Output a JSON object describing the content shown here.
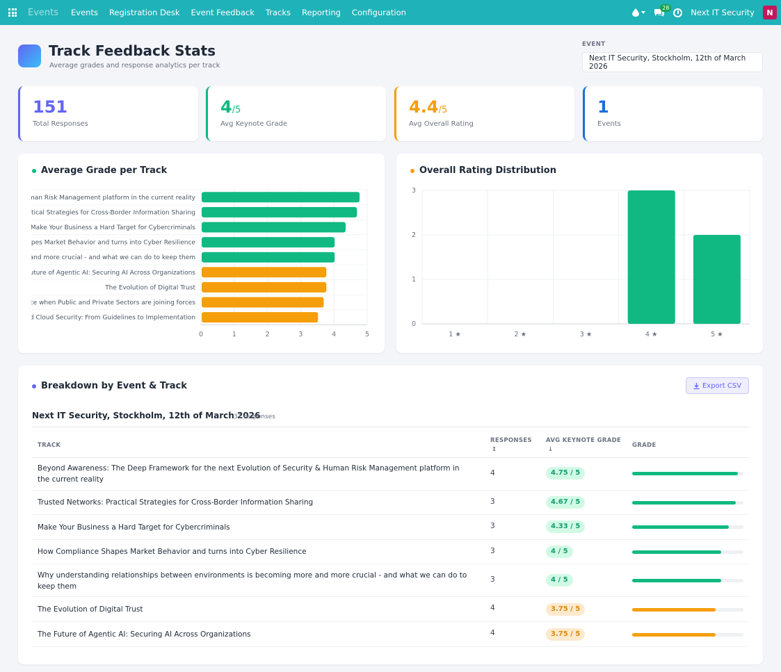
{
  "nav": {
    "brand": "Events",
    "links": [
      "Events",
      "Registration Desk",
      "Event Feedback",
      "Tracks",
      "Reporting",
      "Configuration"
    ],
    "chat_count": "28",
    "company": "Next IT Security",
    "avatar_letter": "N"
  },
  "header": {
    "title": "Track Feedback Stats",
    "subtitle": "Average grades and response analytics per track",
    "event_label": "EVENT",
    "event_value": "Next IT Security, Stockholm, 12th of March 2026"
  },
  "kpis": [
    {
      "value": "151",
      "unit": "",
      "label": "Total Responses",
      "color": "#6366f1"
    },
    {
      "value": "4",
      "unit": "/5",
      "label": "Avg Keynote Grade",
      "color": "#10b981"
    },
    {
      "value": "4.4",
      "unit": "/5",
      "label": "Avg Overall Rating",
      "color": "#f59e0b"
    },
    {
      "value": "1",
      "unit": "",
      "label": "Events",
      "color": "#1d6fd8"
    }
  ],
  "chart_data": [
    {
      "type": "bar",
      "orientation": "horizontal",
      "title": "Average Grade per Track",
      "categories": [
        "uman Risk Management platform in the current reality",
        "tical Strategies for Cross-Border Information Sharing",
        "Make Your Business a Hard Target for Cybercriminals",
        "apes Market Behavior and turns into Cyber Resilience",
        "and more crucial - and what we can do to keep them",
        "uture of Agentic AI: Securing AI Across Organizations",
        "The Evolution of Digital Trust",
        "ce when Public and Private Sectors are joining forces",
        "d Cloud Security: From Guidelines to Implementation"
      ],
      "values": [
        4.75,
        4.67,
        4.33,
        4,
        4,
        3.75,
        3.75,
        3.67,
        3.5
      ],
      "colors": [
        "#10b981",
        "#10b981",
        "#10b981",
        "#10b981",
        "#10b981",
        "#f59e0b",
        "#f59e0b",
        "#f59e0b",
        "#f59e0b"
      ],
      "xlim": [
        0,
        5
      ],
      "xticks": [
        "0",
        "1",
        "2",
        "3",
        "4",
        "5"
      ],
      "grid": true
    },
    {
      "type": "bar",
      "title": "Overall Rating Distribution",
      "categories": [
        "1 ★",
        "2 ★",
        "3 ★",
        "4 ★",
        "5 ★"
      ],
      "values": [
        0,
        0,
        0,
        3,
        2
      ],
      "ylim": [
        0,
        3
      ],
      "yticks": [
        "0",
        "1",
        "2",
        "3"
      ],
      "color": "#10b981",
      "grid": true
    }
  ],
  "breakdown": {
    "title": "Breakdown by Event & Track",
    "export_label": "Export CSV",
    "group_title": "Next IT Security, Stockholm, 12th of March 2026",
    "group_count": "31 responses",
    "headers": {
      "track": "TRACK",
      "responses": "RESPONSES",
      "avg": "AVG KEYNOTE GRADE",
      "grade": "GRADE"
    },
    "rows": [
      {
        "track": "Beyond Awareness: The Deep Framework for the next Evolution of Security & Human Risk Management platform in the current reality",
        "responses": "4",
        "grade": "4.75 / 5",
        "value": 4.75,
        "tone": "green"
      },
      {
        "track": "Trusted Networks: Practical Strategies for Cross-Border Information Sharing",
        "responses": "3",
        "grade": "4.67 / 5",
        "value": 4.67,
        "tone": "green"
      },
      {
        "track": "Make Your Business a Hard Target for Cybercriminals",
        "responses": "3",
        "grade": "4.33 / 5",
        "value": 4.33,
        "tone": "green"
      },
      {
        "track": "How Compliance Shapes Market Behavior and turns into Cyber Resilience",
        "responses": "3",
        "grade": "4 / 5",
        "value": 4,
        "tone": "green"
      },
      {
        "track": "Why understanding relationships between environments is becoming more and more crucial - and what we can do to keep them",
        "responses": "3",
        "grade": "4 / 5",
        "value": 4,
        "tone": "green"
      },
      {
        "track": "The Evolution of Digital Trust",
        "responses": "4",
        "grade": "3.75 / 5",
        "value": 3.75,
        "tone": "orange"
      },
      {
        "track": "The Future of Agentic AI: Securing AI Across Organizations",
        "responses": "4",
        "grade": "3.75 / 5",
        "value": 3.75,
        "tone": "orange"
      }
    ]
  }
}
